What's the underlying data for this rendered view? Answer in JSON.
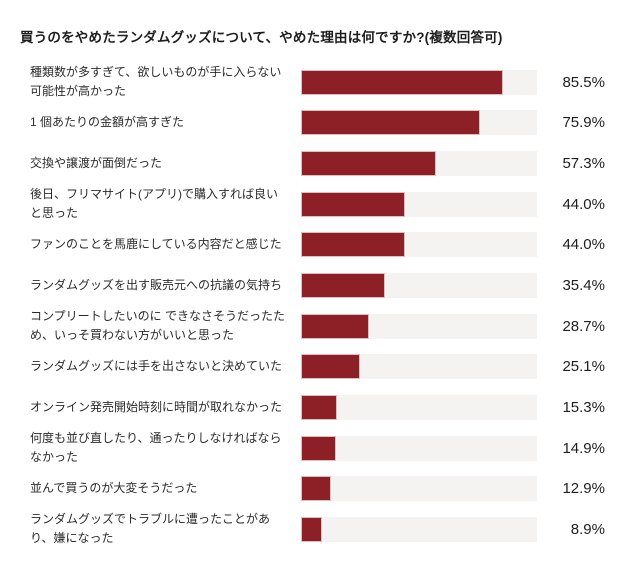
{
  "title": "買うのをやめたランダムグッズについて、やめた理由は何ですか?(複数回答可)",
  "colors": {
    "bar": "#8d2026",
    "track": "#f4f3f2",
    "background": "#ffffff",
    "text": "#1e1e1e"
  },
  "chart_data": {
    "type": "bar",
    "orientation": "horizontal",
    "title": "買うのをやめたランダムグッズについて、やめた理由は何ですか?(複数回答可)",
    "xlim": [
      0,
      100
    ],
    "unit": "%",
    "grid": false,
    "legend": false,
    "categories": [
      "種類数が多すぎて、欲しいものが手に入らない可能性が高かった",
      "1 個あたりの金額が高すぎた",
      "交換や譲渡が面倒だった",
      "後日、フリマサイト(アプリ)で購入すれば良いと思った",
      "ファンのことを馬鹿にしている内容だと感じた",
      "ランダムグッズを出す販売元への抗議の気持ち",
      "コンプリートしたいのに できなさそうだったため、いっそ買わない方がいいと思った",
      "ランダムグッズには手を出さないと決めていた",
      "オンライン発売開始時刻に時間が取れなかった",
      "何度も並び直したり、通ったりしなければならなかった",
      "並んで買うのが大変そうだった",
      "ランダムグッズでトラブルに遭ったことがあり、嫌になった"
    ],
    "values": [
      85.5,
      75.9,
      57.3,
      44.0,
      44.0,
      35.4,
      28.7,
      25.1,
      15.3,
      14.9,
      12.9,
      8.9
    ],
    "value_labels": [
      "85.5%",
      "75.9%",
      "57.3%",
      "44.0%",
      "44.0%",
      "35.4%",
      "28.7%",
      "25.1%",
      "15.3%",
      "14.9%",
      "12.9%",
      "8.9%"
    ]
  }
}
